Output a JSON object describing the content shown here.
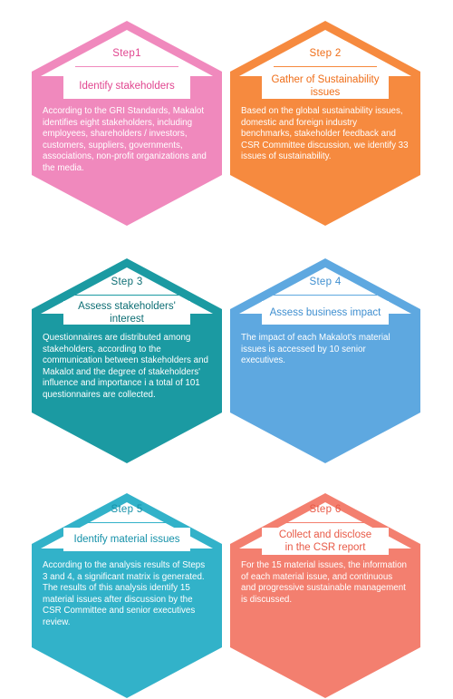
{
  "steps": [
    {
      "step": "Step1",
      "title": "Identify stakeholders",
      "desc": "According to the GRI Standards, Makalot identifies eight stakeholders, including employees, shareholders / investors, customers, suppliers, governments, associations, non-profit organizations and the media.",
      "color": "#f089bd",
      "accent": "#e85aa0",
      "title_color": "#e1458f"
    },
    {
      "step": "Step 2",
      "title": "Gather of Sustainability issues",
      "desc": "Based on the global sustainability issues, domestic and foreign industry benchmarks, stakeholder feedback and CSR Committee discussion, we identify 33 issues of sustainability.",
      "color": "#f68a3f",
      "accent": "#f47a29",
      "title_color": "#ef6d17"
    },
    {
      "step": "Step 3",
      "title": "Assess stakeholders' interest",
      "desc": "Questionnaires are distributed among stakeholders, according to the communication between stakeholders and Makalot and the degree of stakeholders' influence and importance i a total of 101 questionnaires are collected.",
      "color": "#1b9aa2",
      "accent": "#117e85",
      "title_color": "#0d6e74"
    },
    {
      "step": "Step 4",
      "title": "Assess business impact",
      "desc": "The impact of each Makalot's material issues is accessed by 10 senior executives.",
      "color": "#5ea8e0",
      "accent": "#4a97d3",
      "title_color": "#3f8fd0"
    },
    {
      "step": "Step 5",
      "title": "Identify material issues",
      "desc": "According to the analysis results of Steps 3 and 4, a significant matrix is generated. The results of this analysis identify 15 material issues after discussion by the CSR Committee and senior executives review.",
      "color": "#32b2c9",
      "accent": "#1f9fb7",
      "title_color": "#1591a9"
    },
    {
      "step": "Step 6",
      "title": "Collect and disclose in the CSR report",
      "desc": "For the 15 material issues, the information of each material issue, and continuous and progressive sustainable management is discussed.",
      "color": "#f37f6f",
      "accent": "#ee6a58",
      "title_color": "#e85a47"
    }
  ]
}
